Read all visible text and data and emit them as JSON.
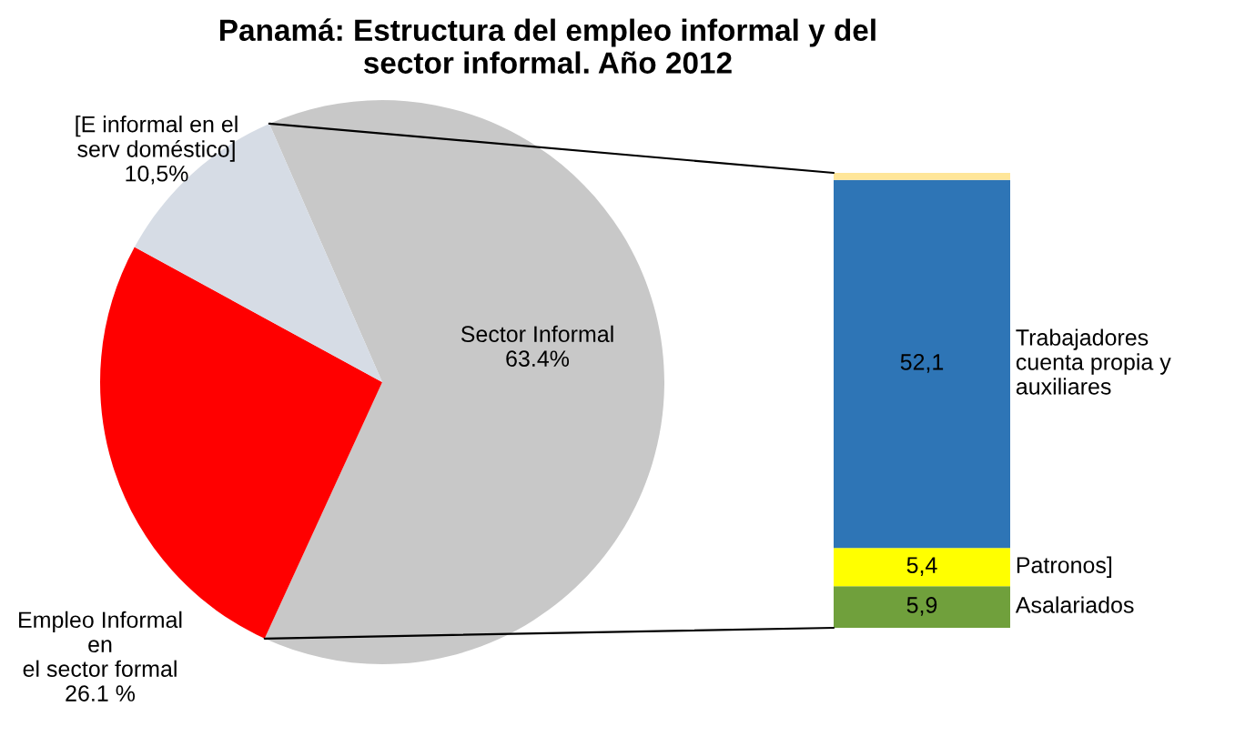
{
  "chart_data": [
    {
      "type": "pie",
      "title": "Panamá: Estructura del empleo informal y del\nsector informal. Año 2012",
      "categories": [
        "Sector Informal",
        "Empleo Informal\nen\nel sector formal",
        "[E informal en el\nserv doméstico]"
      ],
      "values": [
        63.4,
        26.1,
        10.5
      ],
      "value_labels": [
        "63.4%",
        "26.1 %",
        "10,5%"
      ],
      "colors": [
        "#c8c8c8",
        "#ff0000",
        "#d6dce5"
      ]
    },
    {
      "type": "bar",
      "stacked": true,
      "categories": [
        null
      ],
      "series": [
        {
          "name": "Asalariados",
          "color": "#70a03c",
          "values": [
            5.9
          ],
          "value_labels": [
            "5,9"
          ]
        },
        {
          "name": "Patronos]",
          "color": "#ffff00",
          "values": [
            5.4
          ],
          "value_labels": [
            "5,4"
          ]
        },
        {
          "name": "Trabajadores\ncuenta propia y\nauxiliares",
          "color": "#2e75b6",
          "values": [
            52.1
          ],
          "value_labels": [
            "52,1"
          ]
        },
        {
          "color": "#ffe699",
          "values": [
            1.0
          ],
          "value_labels": [
            null
          ]
        }
      ]
    }
  ]
}
